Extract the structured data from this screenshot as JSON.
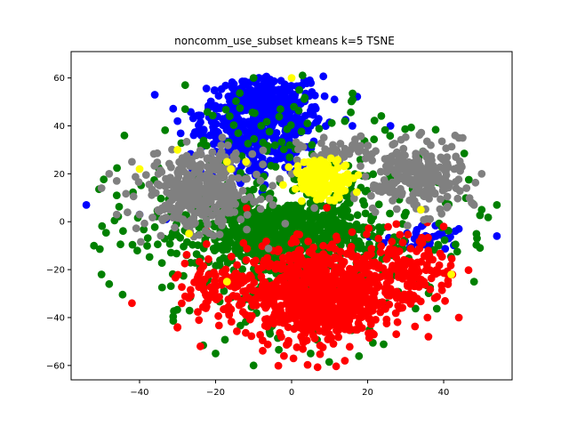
{
  "chart_data": {
    "type": "scatter",
    "title": "noncomm_use_subset kmeans k=5 TSNE",
    "xlabel": "",
    "ylabel": "",
    "xlim": [
      -58,
      58
    ],
    "ylim": [
      -66,
      71
    ],
    "x_ticks": [
      -40,
      -20,
      0,
      20,
      40
    ],
    "y_ticks": [
      -60,
      -40,
      -20,
      0,
      20,
      40,
      60
    ],
    "grid": false,
    "legend": "none",
    "series": [
      {
        "color": "#0000ff",
        "clusters": [
          {
            "cx": -8,
            "cy": 45,
            "sx": 8,
            "sy": 9,
            "n": 520
          },
          {
            "cx": -12,
            "cy": 28,
            "sx": 7,
            "sy": 7,
            "n": 120
          },
          {
            "cx": 35,
            "cy": -7,
            "sx": 5,
            "sy": 3,
            "n": 35
          }
        ],
        "points": [
          [
            -54,
            7
          ],
          [
            -36,
            53
          ],
          [
            -40,
            3
          ],
          [
            -33,
            1
          ],
          [
            16,
            40
          ],
          [
            -30,
            42
          ],
          [
            54,
            -6
          ],
          [
            44,
            -3
          ],
          [
            38,
            -6
          ],
          [
            26,
            40
          ],
          [
            5,
            40
          ]
        ]
      },
      {
        "color": "#008000",
        "clusters": [
          {
            "cx": -3,
            "cy": -5,
            "sx": 11,
            "sy": 7,
            "n": 650
          },
          {
            "cx": 0,
            "cy": 0,
            "sx": 28,
            "sy": 30,
            "n": 420
          }
        ],
        "points": [
          [
            -52,
            -10
          ],
          [
            -50,
            -22
          ],
          [
            -48,
            -26
          ],
          [
            -46,
            11
          ],
          [
            -44,
            36
          ],
          [
            -28,
            57
          ],
          [
            -10,
            60
          ],
          [
            2,
            55
          ],
          [
            14,
            42
          ],
          [
            48,
            -25
          ],
          [
            54,
            7
          ],
          [
            50,
            5
          ],
          [
            -20,
            -55
          ],
          [
            -10,
            -60
          ],
          [
            5,
            -55
          ],
          [
            -28,
            47
          ]
        ]
      },
      {
        "color": "#ff0000",
        "clusters": [
          {
            "cx": 6,
            "cy": -30,
            "sx": 9,
            "sy": 10,
            "n": 800
          },
          {
            "cx": 30,
            "cy": -22,
            "sx": 7,
            "sy": 8,
            "n": 180
          },
          {
            "cx": -20,
            "cy": -30,
            "sx": 6,
            "sy": 8,
            "n": 90
          }
        ],
        "points": [
          [
            -42,
            -34
          ],
          [
            -30,
            -44
          ],
          [
            -24,
            -52
          ],
          [
            34,
            -8
          ],
          [
            40,
            -2
          ],
          [
            44,
            -40
          ],
          [
            36,
            -48
          ],
          [
            14,
            -58
          ],
          [
            -2,
            -56
          ]
        ]
      },
      {
        "color": "#808080",
        "clusters": [
          {
            "cx": -24,
            "cy": 13,
            "sx": 7,
            "sy": 8,
            "n": 380
          },
          {
            "cx": 33,
            "cy": 18,
            "sx": 6,
            "sy": 7,
            "n": 240
          },
          {
            "cx": 14,
            "cy": 29,
            "sx": 6,
            "sy": 3,
            "n": 45
          }
        ],
        "points": [
          [
            -50,
            14
          ],
          [
            -48,
            20
          ],
          [
            -46,
            17
          ],
          [
            -42,
            25
          ],
          [
            -40,
            3
          ],
          [
            -46,
            3
          ],
          [
            43,
            36
          ],
          [
            44,
            35
          ],
          [
            45,
            35
          ],
          [
            50,
            20
          ],
          [
            46,
            14
          ],
          [
            48,
            7
          ],
          [
            22,
            4
          ],
          [
            0,
            20
          ],
          [
            -5,
            15
          ]
        ]
      },
      {
        "color": "#ffff00",
        "clusters": [
          {
            "cx": 8,
            "cy": 18,
            "sx": 4,
            "sy": 4,
            "n": 150
          }
        ],
        "points": [
          [
            -40,
            22
          ],
          [
            -30,
            30
          ],
          [
            -17,
            25
          ],
          [
            -12,
            25
          ],
          [
            -16,
            22
          ],
          [
            0,
            60
          ],
          [
            34,
            5
          ],
          [
            42,
            -22
          ],
          [
            -17,
            -25
          ],
          [
            -27,
            -5
          ]
        ]
      }
    ]
  }
}
